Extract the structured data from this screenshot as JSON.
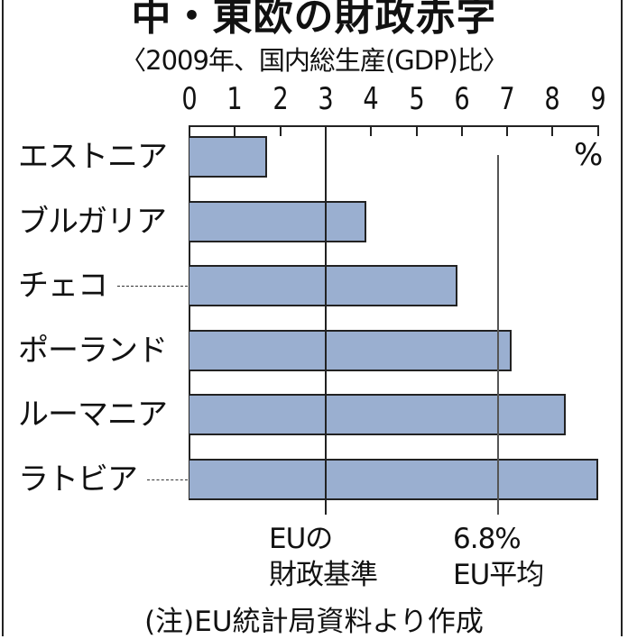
{
  "chart_data": {
    "type": "bar",
    "orientation": "horizontal",
    "title": "中・東欧の財政赤字",
    "subtitle": "〈2009年、国内総生産(GDP)比〉",
    "unit": "%",
    "categories": [
      "エストニア",
      "ブルガリア",
      "チェコ",
      "ポーランド",
      "ルーマニア",
      "ラトビア"
    ],
    "values": [
      1.7,
      3.9,
      5.9,
      7.1,
      8.3,
      9.0
    ],
    "xlim": [
      0,
      9
    ],
    "x_ticks": [
      "0",
      "1",
      "2",
      "3",
      "4",
      "5",
      "6",
      "7",
      "8",
      "9"
    ],
    "grid": false,
    "reference_lines": [
      {
        "value": 3,
        "label_line1": "EUの",
        "label_line2": "財政基準"
      },
      {
        "value": 6.8,
        "label_line1": "6.8%",
        "label_line2": "EU平均"
      }
    ],
    "bar_color": "#9aafd0",
    "footnote": "(注)EU統計局資料より作成"
  }
}
